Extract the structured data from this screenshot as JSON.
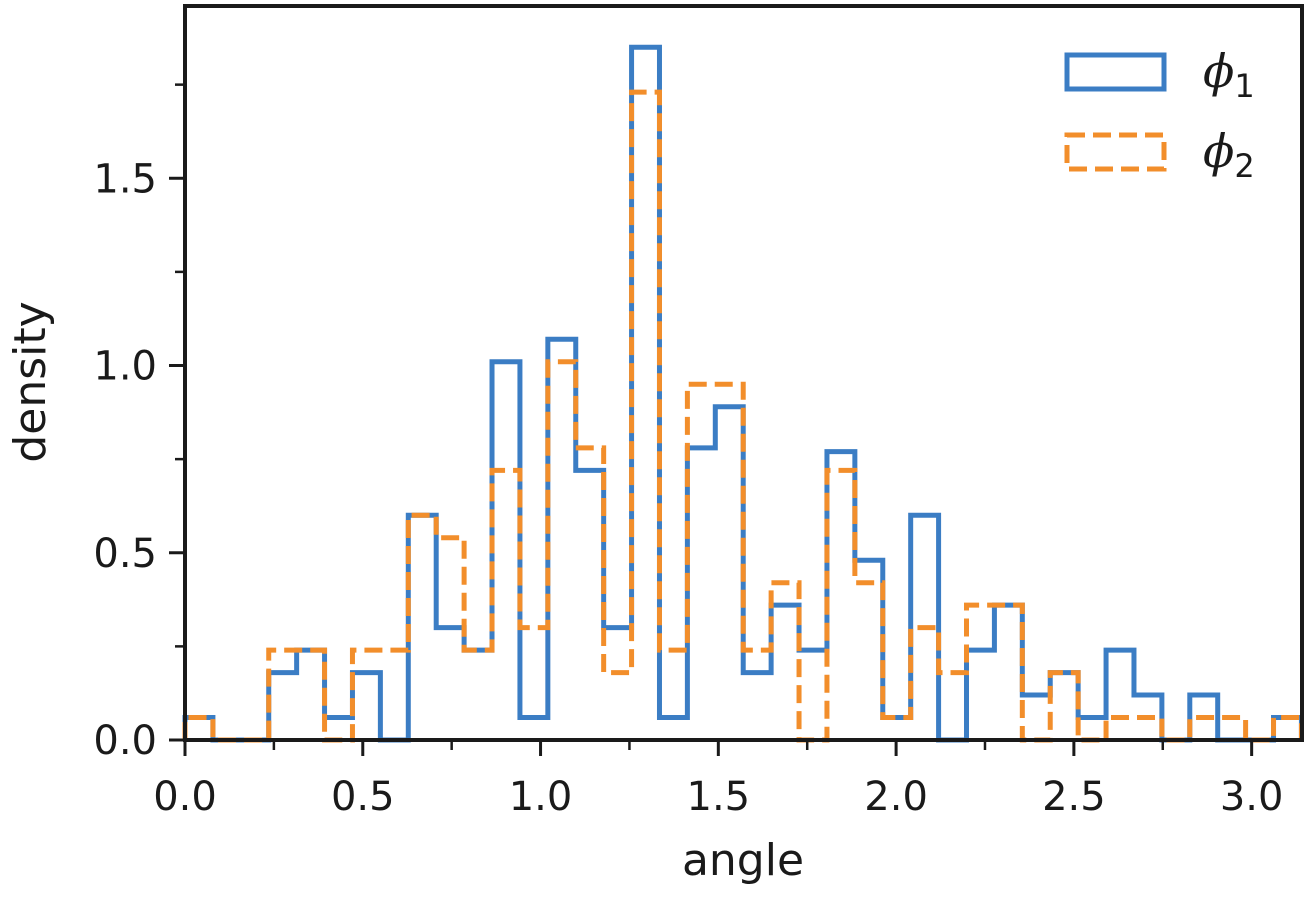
{
  "chart_data": {
    "type": "histogram",
    "title": "",
    "xlabel": "angle",
    "ylabel": "density",
    "xlim": [
      0.0,
      3.1416
    ],
    "ylim": [
      0.0,
      1.96
    ],
    "x_ticks": [
      "0.0",
      "0.5",
      "1.0",
      "1.5",
      "2.0",
      "2.5",
      "3.0"
    ],
    "y_ticks": [
      "0.0",
      "0.5",
      "1.0",
      "1.5"
    ],
    "bin_width": 0.0785,
    "grid": false,
    "legend_position": "top-right",
    "series": [
      {
        "name": "ϕ1",
        "legend_symbol": "ϕ",
        "legend_subscript": "1",
        "color": "#3b7dc4",
        "style": "solid",
        "values": [
          0.06,
          0.0,
          0.0,
          0.18,
          0.24,
          0.06,
          0.18,
          0.0,
          0.6,
          0.3,
          0.24,
          1.01,
          0.06,
          1.07,
          0.72,
          0.3,
          1.85,
          0.06,
          0.78,
          0.89,
          0.18,
          0.36,
          0.24,
          0.77,
          0.48,
          0.06,
          0.6,
          0.0,
          0.24,
          0.36,
          0.12,
          0.18,
          0.06,
          0.24,
          0.12,
          0.0,
          0.12,
          0.0,
          0.0,
          0.06
        ]
      },
      {
        "name": "ϕ2",
        "legend_symbol": "ϕ",
        "legend_subscript": "2",
        "color": "#f28e2b",
        "style": "dashed",
        "values": [
          0.06,
          0.0,
          0.0,
          0.24,
          0.24,
          0.0,
          0.24,
          0.24,
          0.6,
          0.54,
          0.24,
          0.72,
          0.3,
          1.01,
          0.78,
          0.18,
          1.73,
          0.24,
          0.95,
          0.95,
          0.24,
          0.42,
          0.0,
          0.72,
          0.42,
          0.06,
          0.3,
          0.18,
          0.36,
          0.36,
          0.0,
          0.18,
          0.0,
          0.06,
          0.06,
          0.0,
          0.06,
          0.06,
          0.0,
          0.06
        ]
      }
    ]
  }
}
